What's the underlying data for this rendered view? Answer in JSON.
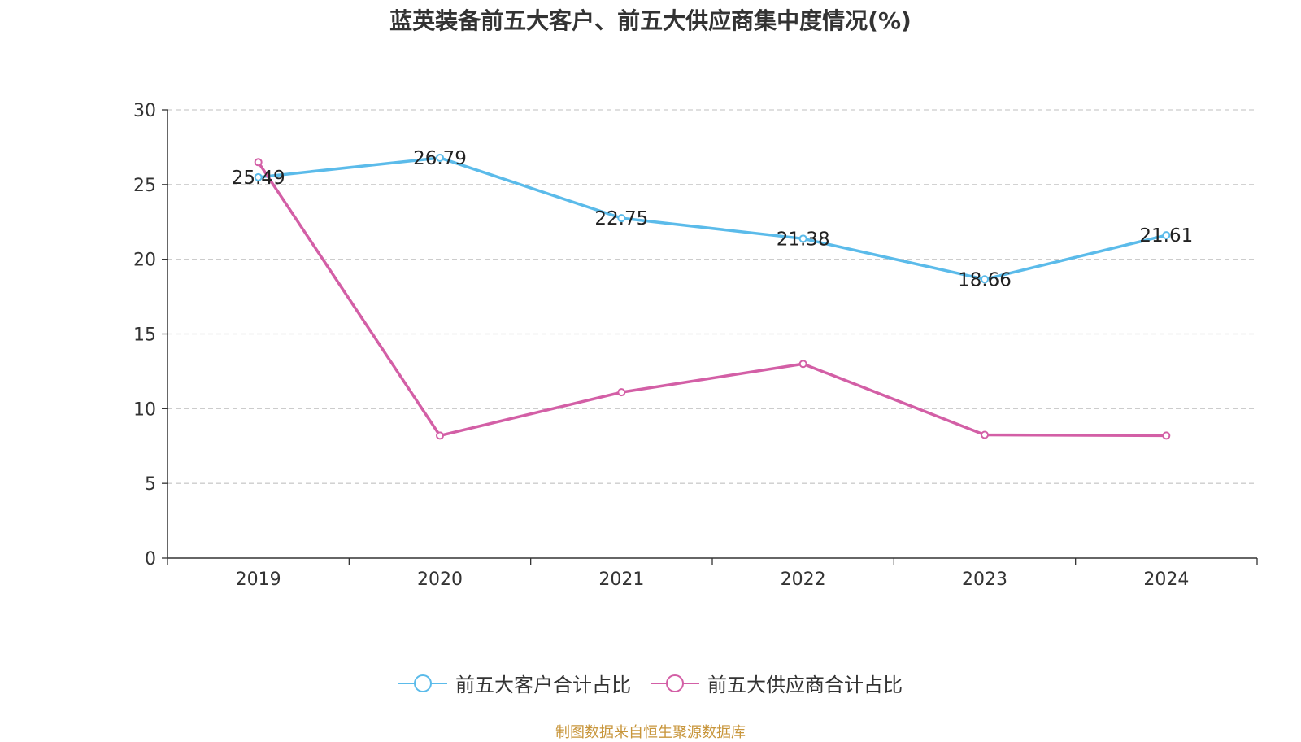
{
  "title": "蓝英装备前五大客户、前五大供应商集中度情况(%)",
  "source": "制图数据来自恒生聚源数据库",
  "colors": {
    "customers": "#5bbbea",
    "suppliers": "#d35fa6",
    "grid": "#cccccc",
    "axis": "#333333"
  },
  "legend": [
    {
      "label": "前五大客户合计占比",
      "color": "#5bbbea"
    },
    {
      "label": "前五大供应商合计占比",
      "color": "#d35fa6"
    }
  ],
  "chart_data": {
    "type": "line",
    "title": "蓝英装备前五大客户、前五大供应商集中度情况(%)",
    "categories": [
      "2019",
      "2020",
      "2021",
      "2022",
      "2023",
      "2024"
    ],
    "ylim": [
      0,
      30
    ],
    "yticks": [
      "0",
      "5",
      "10",
      "15",
      "20",
      "25",
      "30"
    ],
    "grid": true,
    "legend_position": "bottom",
    "series": [
      {
        "name": "前五大客户合计占比",
        "values": [
          25.49,
          26.79,
          22.75,
          21.38,
          18.66,
          21.61
        ],
        "labels": [
          "25.49",
          "26.79",
          "22.75",
          "21.38",
          "18.66",
          "21.61"
        ]
      },
      {
        "name": "前五大供应商合计占比",
        "values": [
          26.5,
          8.2,
          11.1,
          13.0,
          8.25,
          8.2
        ]
      }
    ]
  }
}
